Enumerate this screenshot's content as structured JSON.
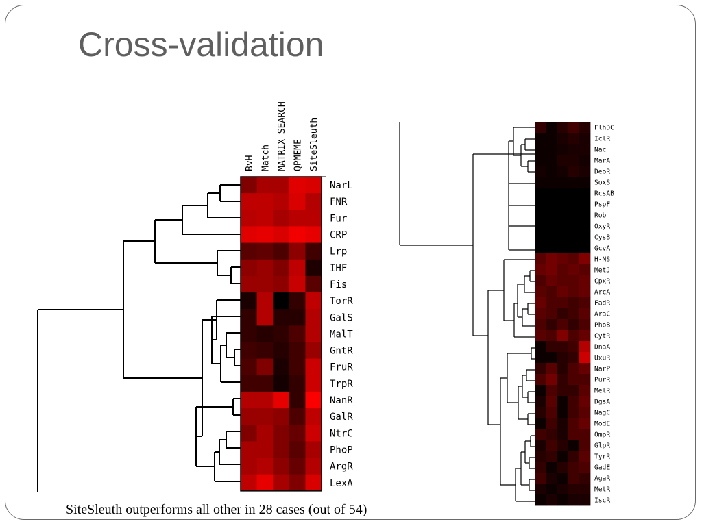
{
  "slide": {
    "title": "Cross-validation",
    "caption": "SiteSleuth outperforms all other in 28 cases (out of 54)"
  },
  "colors": {
    "title": "#5f5f5f",
    "frame": "#6a6a6a",
    "scale_low": "#000000",
    "scale_high": "#ff0000"
  },
  "chart_data": [
    {
      "type": "heatmap",
      "color_scale": "black to red",
      "columns": [
        "BvH",
        "Match",
        "MATRIX SEARCH",
        "QPMEME",
        "SiteSleuth"
      ],
      "rows": [
        "NarL",
        "FNR",
        "Fur",
        "CRP",
        "Lrp",
        "IHF",
        "Fis",
        "TorR",
        "GalS",
        "MalT",
        "GntR",
        "FruR",
        "TrpR",
        "NanR",
        "GalR",
        "NtrC",
        "PhoP",
        "ArgR",
        "LexA"
      ],
      "values": [
        [
          0.5,
          0.65,
          0.65,
          0.88,
          0.85
        ],
        [
          0.75,
          0.75,
          0.7,
          0.85,
          0.7
        ],
        [
          0.72,
          0.75,
          0.65,
          0.72,
          0.72
        ],
        [
          0.88,
          0.9,
          0.85,
          0.95,
          0.9
        ],
        [
          0.35,
          0.38,
          0.3,
          0.55,
          0.25
        ],
        [
          0.55,
          0.6,
          0.5,
          0.75,
          0.12
        ],
        [
          0.6,
          0.6,
          0.55,
          0.78,
          0.35
        ],
        [
          0.1,
          0.7,
          0.0,
          0.2,
          0.75
        ],
        [
          0.2,
          0.7,
          0.15,
          0.15,
          0.7
        ],
        [
          0.2,
          0.15,
          0.18,
          0.3,
          0.7
        ],
        [
          0.25,
          0.22,
          0.15,
          0.25,
          0.6
        ],
        [
          0.3,
          0.5,
          0.1,
          0.25,
          0.8
        ],
        [
          0.25,
          0.25,
          0.08,
          0.2,
          0.8
        ],
        [
          0.7,
          0.7,
          0.9,
          0.2,
          0.98
        ],
        [
          0.6,
          0.6,
          0.55,
          0.3,
          0.75
        ],
        [
          0.5,
          0.65,
          0.5,
          0.4,
          0.8
        ],
        [
          0.65,
          0.65,
          0.5,
          0.35,
          0.65
        ],
        [
          0.65,
          0.7,
          0.55,
          0.4,
          0.7
        ],
        [
          0.75,
          0.9,
          0.65,
          0.5,
          0.85
        ]
      ]
    },
    {
      "type": "heatmap",
      "color_scale": "black to red",
      "rows": [
        "FlhDC",
        "IclR",
        "Nac",
        "MarA",
        "DeoR",
        "SoxS",
        "RcsAB",
        "PspF",
        "Rob",
        "OxyR",
        "CysB",
        "GcvA",
        "H-NS",
        "MetJ",
        "CpxR",
        "ArcA",
        "FadR",
        "AraC",
        "PhoB",
        "CytR",
        "DnaA",
        "UxuR",
        "NarP",
        "PurR",
        "MelR",
        "DgsA",
        "NagC",
        "ModE",
        "OmpR",
        "GlpR",
        "TyrR",
        "GadE",
        "AgaR",
        "MetR",
        "IscR"
      ],
      "values": [
        [
          0.2,
          0.05,
          0.15,
          0.25,
          0.15
        ],
        [
          0.05,
          0.05,
          0.1,
          0.15,
          0.1
        ],
        [
          0.05,
          0.05,
          0.08,
          0.1,
          0.1
        ],
        [
          0.05,
          0.05,
          0.12,
          0.12,
          0.08
        ],
        [
          0.08,
          0.05,
          0.08,
          0.15,
          0.1
        ],
        [
          0.05,
          0.05,
          0.05,
          0.05,
          0.05
        ],
        [
          0.0,
          0.0,
          0.0,
          0.0,
          0.0
        ],
        [
          0.0,
          0.0,
          0.0,
          0.0,
          0.0
        ],
        [
          0.0,
          0.0,
          0.0,
          0.0,
          0.0
        ],
        [
          0.0,
          0.0,
          0.0,
          0.0,
          0.0
        ],
        [
          0.0,
          0.0,
          0.0,
          0.0,
          0.0
        ],
        [
          0.0,
          0.0,
          0.0,
          0.0,
          0.0
        ],
        [
          0.35,
          0.45,
          0.4,
          0.35,
          0.5
        ],
        [
          0.4,
          0.45,
          0.35,
          0.4,
          0.35
        ],
        [
          0.3,
          0.4,
          0.35,
          0.35,
          0.4
        ],
        [
          0.35,
          0.3,
          0.4,
          0.35,
          0.4
        ],
        [
          0.4,
          0.3,
          0.3,
          0.25,
          0.3
        ],
        [
          0.35,
          0.3,
          0.2,
          0.25,
          0.35
        ],
        [
          0.3,
          0.2,
          0.3,
          0.2,
          0.3
        ],
        [
          0.35,
          0.3,
          0.5,
          0.3,
          0.4
        ],
        [
          0.05,
          0.2,
          0.2,
          0.25,
          0.7
        ],
        [
          0.05,
          0.05,
          0.15,
          0.2,
          0.8
        ],
        [
          0.2,
          0.35,
          0.15,
          0.3,
          0.4
        ],
        [
          0.3,
          0.45,
          0.2,
          0.3,
          0.3
        ],
        [
          0.05,
          0.3,
          0.2,
          0.2,
          0.35
        ],
        [
          0.1,
          0.35,
          0.05,
          0.25,
          0.4
        ],
        [
          0.15,
          0.3,
          0.05,
          0.25,
          0.35
        ],
        [
          0.05,
          0.25,
          0.1,
          0.3,
          0.4
        ],
        [
          0.25,
          0.2,
          0.1,
          0.3,
          0.3
        ],
        [
          0.1,
          0.25,
          0.15,
          0.05,
          0.3
        ],
        [
          0.15,
          0.2,
          0.05,
          0.2,
          0.35
        ],
        [
          0.2,
          0.05,
          0.15,
          0.25,
          0.3
        ],
        [
          0.25,
          0.1,
          0.05,
          0.25,
          0.2
        ],
        [
          0.1,
          0.05,
          0.1,
          0.15,
          0.15
        ],
        [
          0.05,
          0.1,
          0.05,
          0.1,
          0.1
        ]
      ]
    }
  ]
}
